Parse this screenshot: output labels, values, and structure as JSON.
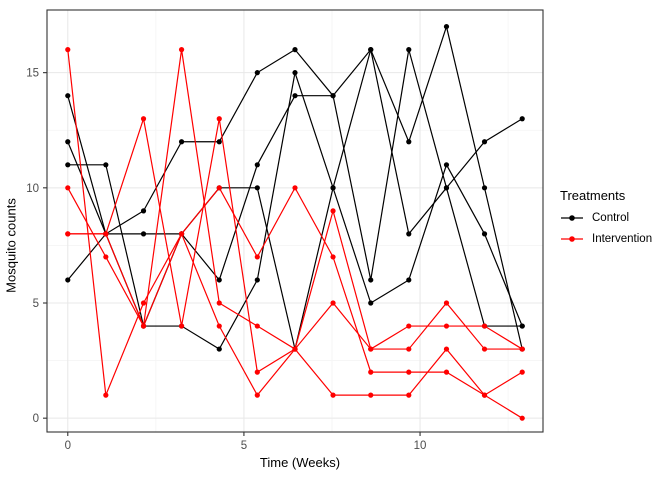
{
  "axes": {
    "x_title": "Time (Weeks)",
    "y_title": "Mosquito counts"
  },
  "legend": {
    "title": "Treatments",
    "items": [
      {
        "label": "Control",
        "color": "#000000"
      },
      {
        "label": "Intervention",
        "color": "#ff0000"
      }
    ]
  },
  "colors": {
    "control": "#000000",
    "intervention": "#ff0000",
    "tick_label": "#4d4d4d",
    "panel_border": "#333333",
    "grid_major": "#e8e8e8",
    "grid_minor": "#f4f4f4"
  },
  "chart_data": {
    "type": "line",
    "title": "",
    "xlabel": "Time (Weeks)",
    "ylabel": "Mosquito counts",
    "xlim": [
      -0.59,
      13.49
    ],
    "ylim": [
      -0.6,
      17.72
    ],
    "x_ticks": [
      0,
      5,
      10
    ],
    "x_tick_labels": [
      "0",
      "5",
      "10"
    ],
    "x_minor_ticks": [
      2.5,
      7.5,
      12.5
    ],
    "y_ticks": [
      0,
      5,
      10,
      15
    ],
    "y_tick_labels": [
      "0",
      "5",
      "10",
      "15"
    ],
    "y_minor_ticks": [
      2.5,
      7.5,
      12.5
    ],
    "grid": true,
    "legend_position": "right",
    "x": [
      0,
      1.08,
      2.15,
      3.23,
      4.3,
      5.38,
      6.45,
      7.53,
      8.6,
      9.68,
      10.75,
      11.83,
      12.9
    ],
    "series": [
      {
        "name": "Control",
        "group": "control-1",
        "color": "#000000",
        "values": [
          6,
          8,
          9,
          12,
          12,
          15,
          16,
          14,
          6,
          16,
          10,
          12,
          13
        ]
      },
      {
        "name": "Control",
        "group": "control-2",
        "color": "#000000",
        "values": [
          11,
          11,
          4,
          8,
          10,
          10,
          3,
          10,
          5,
          6,
          11,
          8,
          4
        ]
      },
      {
        "name": "Control",
        "group": "control-3",
        "color": "#000000",
        "values": [
          14,
          8,
          4,
          4,
          3,
          6,
          15,
          10,
          16,
          8,
          10,
          4,
          4
        ]
      },
      {
        "name": "Control",
        "group": "control-4",
        "color": "#000000",
        "values": [
          12,
          8,
          8,
          8,
          6,
          11,
          14,
          14,
          16,
          12,
          17,
          10,
          3
        ]
      },
      {
        "name": "Intervention",
        "group": "intervention-1",
        "color": "#ff0000",
        "values": [
          16,
          1,
          5,
          8,
          10,
          7,
          10,
          7,
          2,
          2,
          2,
          1,
          0
        ]
      },
      {
        "name": "Intervention",
        "group": "intervention-2",
        "color": "#ff0000",
        "values": [
          10,
          7,
          4,
          16,
          5,
          4,
          3,
          9,
          3,
          4,
          4,
          4,
          3
        ]
      },
      {
        "name": "Intervention",
        "group": "intervention-3",
        "color": "#ff0000",
        "values": [
          8,
          8,
          13,
          4,
          13,
          2,
          3,
          5,
          3,
          3,
          5,
          3,
          3
        ]
      },
      {
        "name": "Intervention",
        "group": "intervention-4",
        "color": "#ff0000",
        "values": [
          8,
          8,
          4,
          8,
          4,
          1,
          3,
          1,
          1,
          1,
          3,
          1,
          2
        ]
      }
    ]
  }
}
